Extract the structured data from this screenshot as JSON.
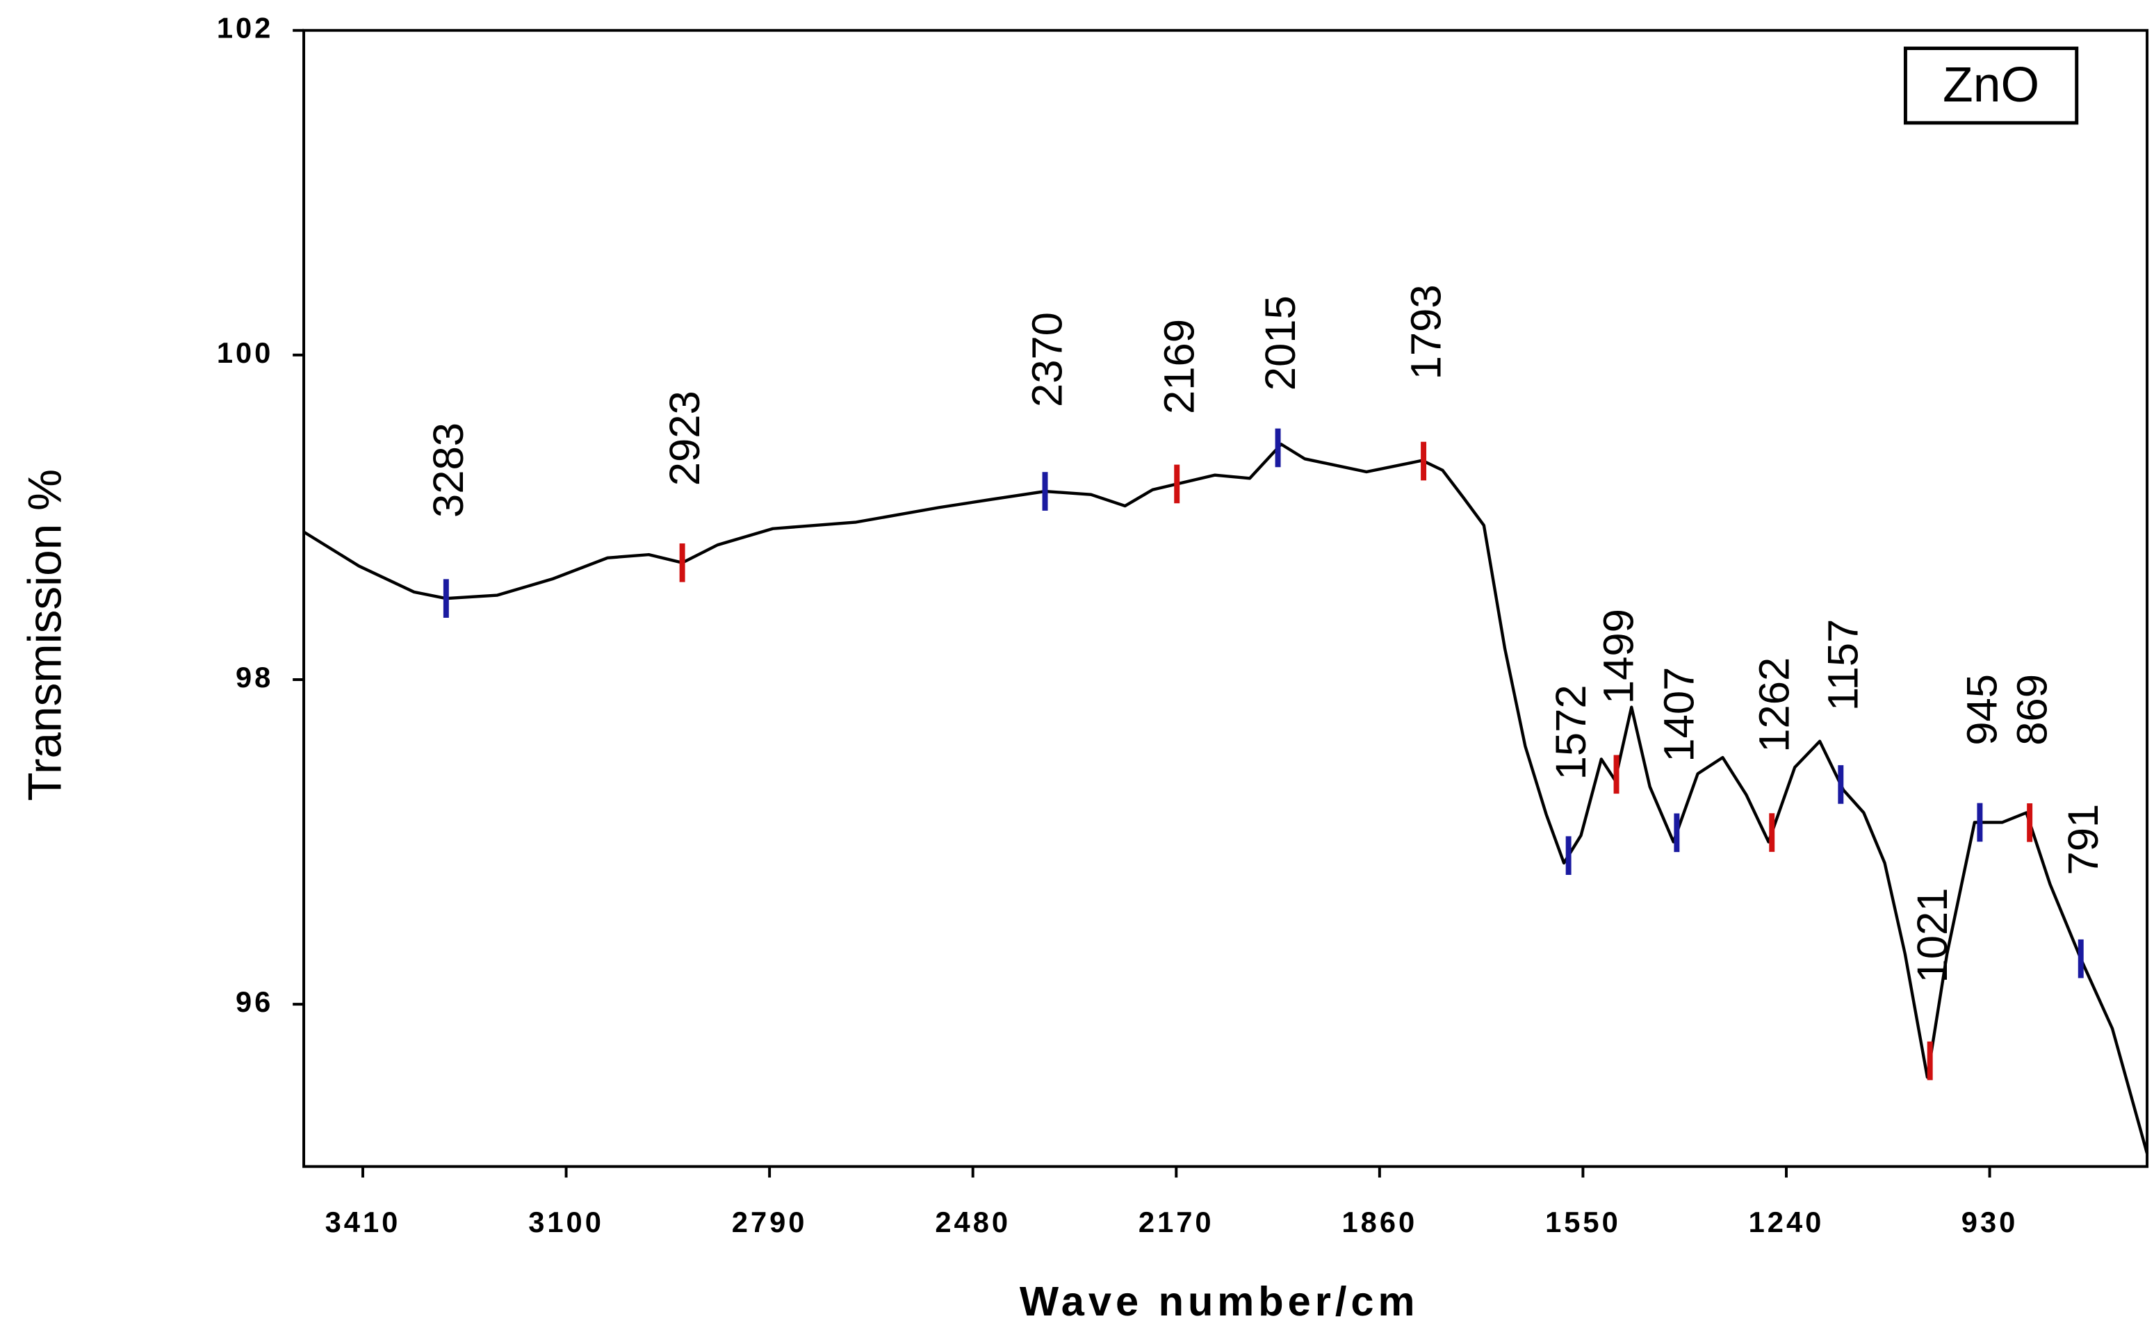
{
  "chart_data": {
    "type": "line",
    "x_label": "Wave number/cm",
    "y_label": "Transmission %",
    "xlim": [
      3500,
      690
    ],
    "ylim": [
      95,
      102
    ],
    "xticks": [
      3410,
      3100,
      2790,
      2480,
      2170,
      1860,
      1550,
      1240,
      930
    ],
    "yticks": [
      96,
      98,
      100,
      102
    ],
    "legend": "upper right",
    "x": [
      3500,
      3416,
      3332,
      3283,
      3205,
      3121,
      3037,
      2974,
      2923,
      2869,
      2785,
      2658,
      2532,
      2452,
      2370,
      2300,
      2248,
      2206,
      2164,
      2111,
      2058,
      2010,
      1974,
      1880,
      1795,
      1764,
      1732,
      1701,
      1669,
      1638,
      1606,
      1579,
      1553,
      1522,
      1501,
      1476,
      1448,
      1412,
      1375,
      1337,
      1301,
      1267,
      1227,
      1189,
      1153,
      1122,
      1090,
      1059,
      1025,
      995,
      953,
      911,
      874,
      838,
      790,
      743,
      690
    ],
    "series": [
      {
        "name": "ZnO",
        "color": "#000000",
        "values": [
          98.91,
          98.7,
          98.54,
          98.5,
          98.52,
          98.62,
          98.75,
          98.77,
          98.72,
          98.83,
          98.93,
          98.97,
          99.06,
          99.11,
          99.16,
          99.14,
          99.07,
          99.17,
          99.21,
          99.26,
          99.24,
          99.45,
          99.36,
          99.28,
          99.35,
          99.29,
          99.12,
          98.95,
          98.19,
          97.59,
          97.17,
          96.87,
          97.04,
          97.51,
          97.38,
          97.83,
          97.34,
          97.0,
          97.42,
          97.52,
          97.29,
          97.0,
          97.46,
          97.62,
          97.32,
          97.18,
          96.87,
          96.31,
          95.55,
          96.31,
          97.12,
          97.12,
          97.18,
          96.74,
          96.27,
          95.85,
          95.08
        ]
      }
    ],
    "annotations": [
      "3283",
      "2923",
      "2370",
      "2169",
      "2015",
      "1793",
      "1572",
      "1499",
      "1407",
      "1262",
      "1157",
      "1021",
      "945",
      "869",
      "791"
    ]
  }
}
